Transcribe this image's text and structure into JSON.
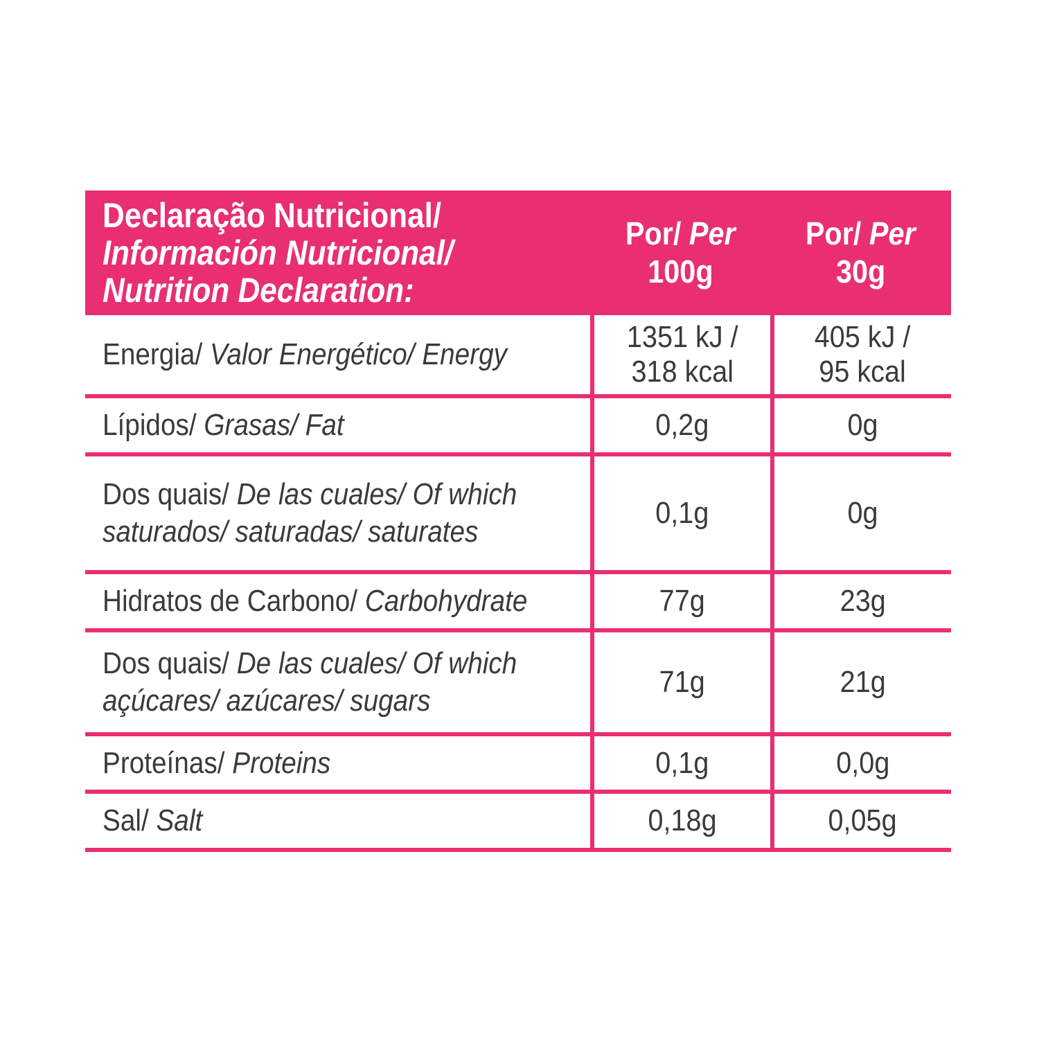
{
  "colors": {
    "accent_pink": "#E92E72",
    "header_text": "#FFFFFF",
    "body_text": "#3A3A3A",
    "background": "#FFFFFF"
  },
  "table": {
    "header": {
      "title_lines": [
        {
          "text": "Declaração Nutricional/",
          "italic": false
        },
        {
          "text": "Información Nutricional/",
          "italic": true
        },
        {
          "text": "Nutrition Declaration:",
          "italic": true
        }
      ],
      "columns": [
        {
          "label_regular": "Por/",
          "label_italic": "Per",
          "amount": "100g"
        },
        {
          "label_regular": "Por/",
          "label_italic": "Per",
          "amount": "30g"
        }
      ]
    },
    "rows": [
      {
        "label": [
          {
            "t": "Energia/ ",
            "i": false
          },
          {
            "t": "Valor Energético/ Energy",
            "i": true
          }
        ],
        "values": [
          {
            "lines": [
              "1351 kJ /",
              "318 kcal"
            ]
          },
          {
            "lines": [
              "405 kJ /",
              "95 kcal"
            ]
          }
        ]
      },
      {
        "label": [
          {
            "t": "Lípidos/ ",
            "i": false
          },
          {
            "t": "Grasas/ Fat",
            "i": true
          }
        ],
        "values": [
          {
            "lines": [
              "0,2g"
            ]
          },
          {
            "lines": [
              "0g"
            ]
          }
        ]
      },
      {
        "label": [
          {
            "t": "Dos quais/ ",
            "i": false
          },
          {
            "t": "De las cuales/ Of which",
            "i": true
          },
          {
            "br": true
          },
          {
            "t": "saturados/ saturadas/ saturates",
            "i": true
          }
        ],
        "values": [
          {
            "lines": [
              "0,1g"
            ]
          },
          {
            "lines": [
              "0g"
            ]
          }
        ]
      },
      {
        "label": [
          {
            "t": "Hidratos de Carbono/ ",
            "i": false
          },
          {
            "t": "Carbohydrate",
            "i": true
          }
        ],
        "values": [
          {
            "lines": [
              "77g"
            ]
          },
          {
            "lines": [
              "23g"
            ]
          }
        ]
      },
      {
        "label": [
          {
            "t": "Dos quais/ ",
            "i": false
          },
          {
            "t": "De las cuales/ Of which",
            "i": true
          },
          {
            "br": true
          },
          {
            "t": "açúcares/ azúcares/ sugars",
            "i": true
          }
        ],
        "values": [
          {
            "lines": [
              "71g"
            ]
          },
          {
            "lines": [
              "21g"
            ]
          }
        ]
      },
      {
        "label": [
          {
            "t": "Proteínas/ ",
            "i": false
          },
          {
            "t": "Proteins",
            "i": true
          }
        ],
        "values": [
          {
            "lines": [
              "0,1g"
            ]
          },
          {
            "lines": [
              "0,0g"
            ]
          }
        ]
      },
      {
        "label": [
          {
            "t": "Sal/ ",
            "i": false
          },
          {
            "t": "Salt",
            "i": true
          }
        ],
        "values": [
          {
            "lines": [
              "0,18g"
            ]
          },
          {
            "lines": [
              "0,05g"
            ]
          }
        ]
      }
    ]
  }
}
